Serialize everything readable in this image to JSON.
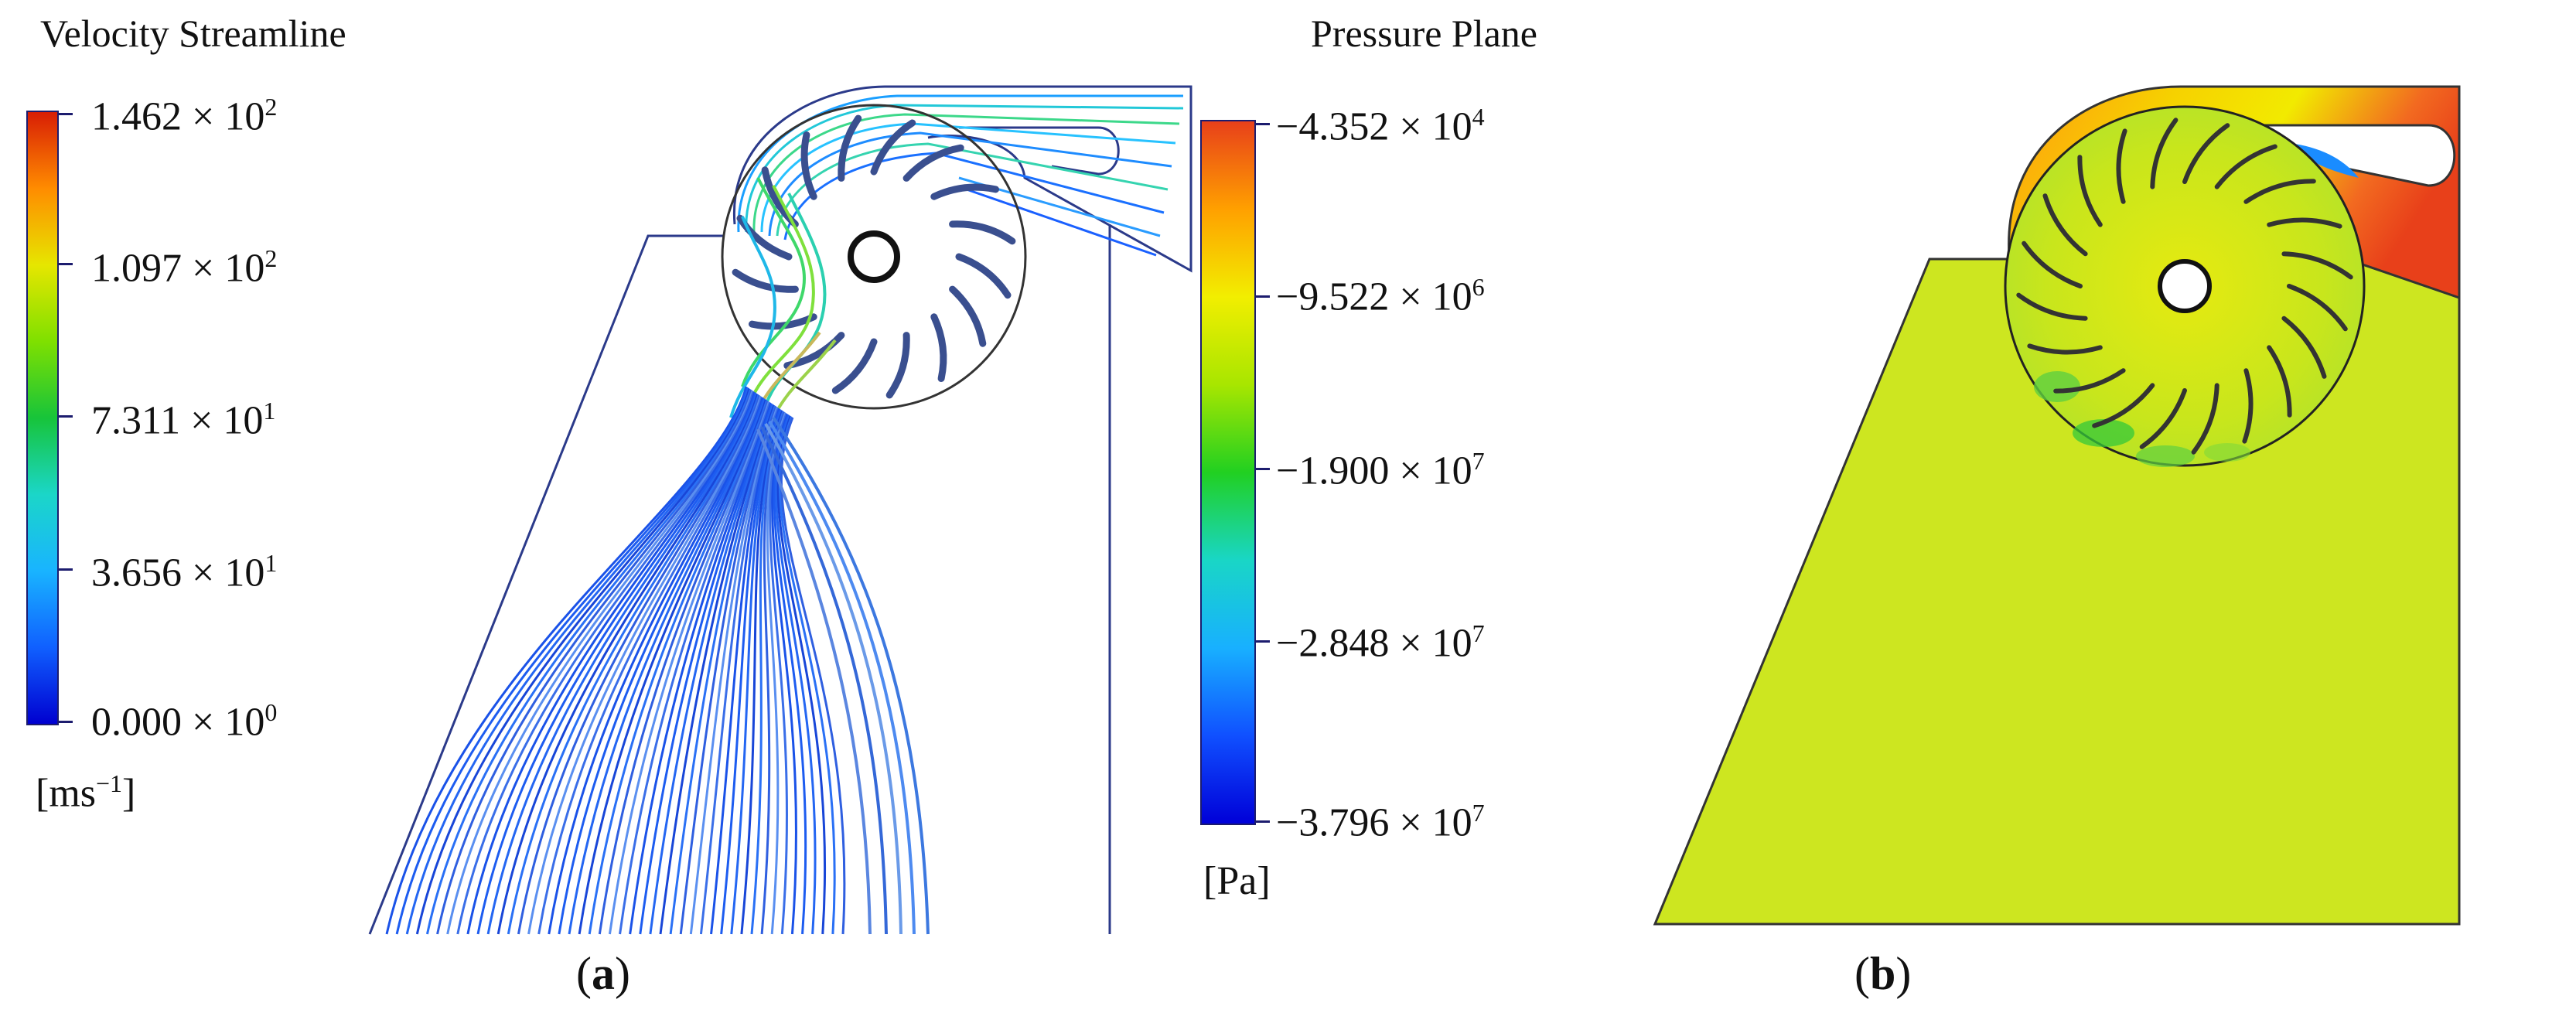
{
  "panel_a": {
    "title": "Velocity Streamline",
    "colorbar": {
      "colors": [
        "#d81e05",
        "#ff8c00",
        "#e6e600",
        "#7fe000",
        "#17c43a",
        "#1bd6c8",
        "#19b4ff",
        "#1060ff",
        "#0000d0"
      ],
      "ticks": [
        {
          "mantissa": "1.462 × 10",
          "exp": "2"
        },
        {
          "mantissa": "1.097 × 10",
          "exp": "2"
        },
        {
          "mantissa": "7.311 × 10",
          "exp": "1"
        },
        {
          "mantissa": "3.656 × 10",
          "exp": "1"
        },
        {
          "mantissa": "0.000 × 10",
          "exp": "0"
        }
      ],
      "unit_base": "[ms",
      "unit_exp": "−1",
      "unit_close": "]"
    },
    "caption_open": "(",
    "caption_letter": "a",
    "caption_close": ")"
  },
  "panel_b": {
    "title": "Pressure Plane",
    "colorbar": {
      "colors": [
        "#e8401a",
        "#ffa000",
        "#f2ee00",
        "#a8e600",
        "#21d021",
        "#19d6c6",
        "#18b0ff",
        "#1050ff",
        "#0000d8"
      ],
      "ticks": [
        {
          "mantissa": "−4.352 × 10",
          "exp": "4"
        },
        {
          "mantissa": "−9.522 × 10",
          "exp": "6"
        },
        {
          "mantissa": "−1.900 × 10",
          "exp": "7"
        },
        {
          "mantissa": "−2.848 × 10",
          "exp": "7"
        },
        {
          "mantissa": "−3.796 × 10",
          "exp": "7"
        }
      ],
      "unit": "[Pa]"
    },
    "caption_open": "(",
    "caption_letter": "b",
    "caption_close": ")"
  }
}
